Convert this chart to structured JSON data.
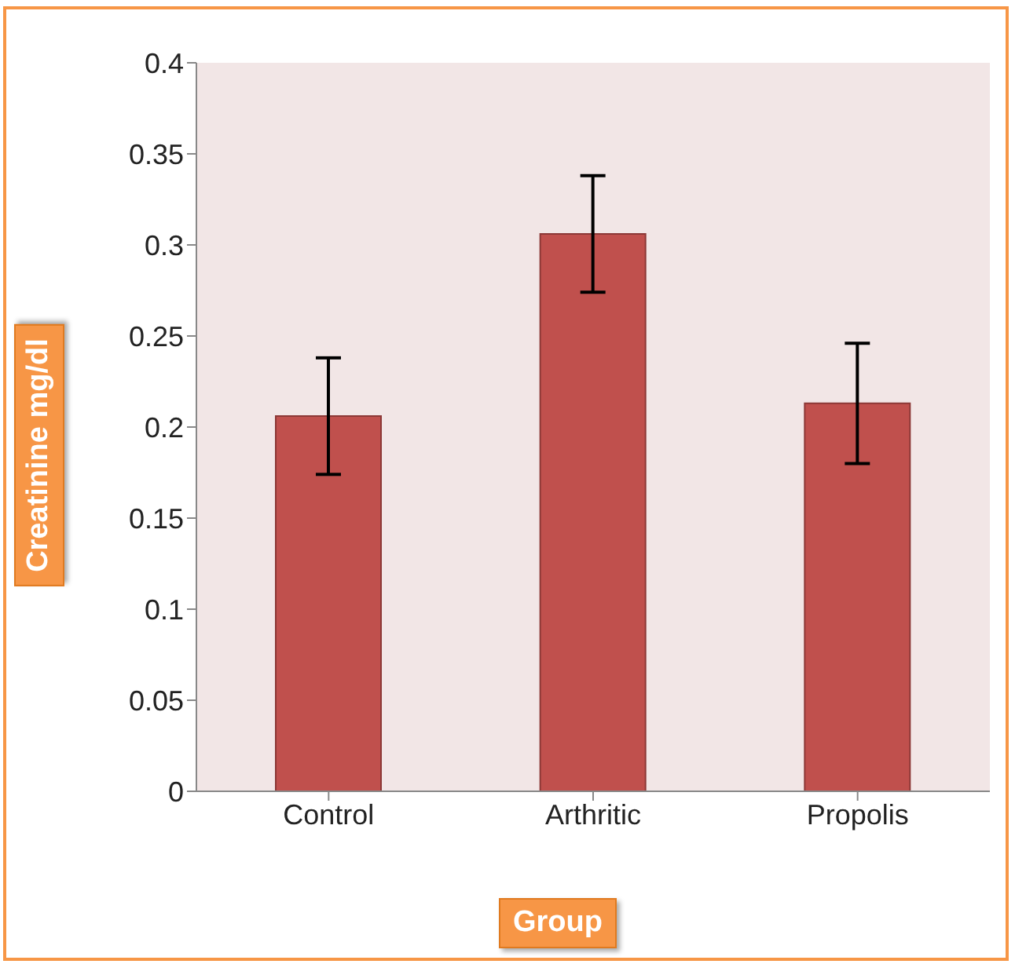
{
  "chart_data": {
    "type": "bar",
    "xlabel": "Group",
    "ylabel": "Creatinine mg/dl",
    "categories": [
      "Control",
      "Arthritic",
      "Propolis"
    ],
    "values": [
      0.206,
      0.306,
      0.213
    ],
    "errors": [
      0.032,
      0.032,
      0.033
    ],
    "color": "#c0504d",
    "ylim": [
      0,
      0.4
    ],
    "yticks": [
      0,
      0.05,
      0.1,
      0.15,
      0.2,
      0.25,
      0.3,
      0.35,
      0.4
    ],
    "grid": false
  }
}
